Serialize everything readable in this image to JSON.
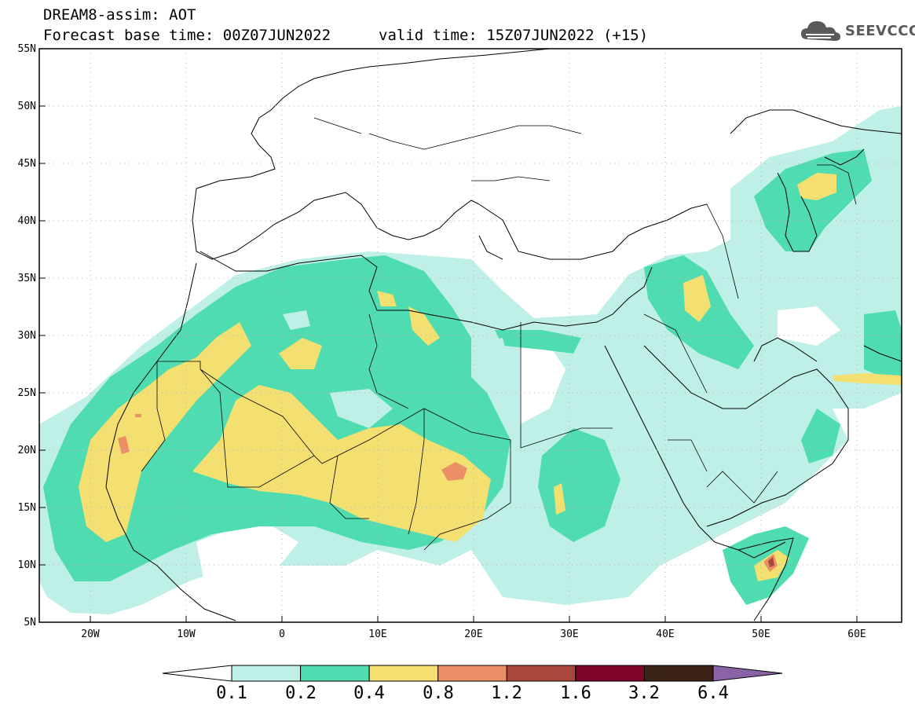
{
  "header": {
    "title_line1": "DREAM8-assim: AOT",
    "title_line2a": "Forecast base time: 00Z07JUN2022",
    "title_line2b": "valid time: 15Z07JUN2022 (+15)",
    "logo_text": "SEEVCCC"
  },
  "map": {
    "lat_labels": [
      "55N",
      "50N",
      "45N",
      "40N",
      "35N",
      "30N",
      "25N",
      "20N",
      "15N",
      "10N",
      "5N"
    ],
    "lon_labels": [
      "20W",
      "10W",
      "0",
      "10E",
      "20E",
      "30E",
      "40E",
      "50E",
      "60E"
    ],
    "lon_range": [
      -25,
      65
    ],
    "lat_range": [
      5,
      55
    ],
    "variable": "AOT"
  },
  "colorbar": {
    "labels": [
      "0.1",
      "0.2",
      "0.4",
      "0.8",
      "1.2",
      "1.6",
      "3.2",
      "6.4"
    ],
    "colors": [
      "#ffffff",
      "#bff0e8",
      "#4fdcb0",
      "#f3e070",
      "#ea8f66",
      "#a9483a",
      "#7d0528",
      "#3a2416",
      "#8a63a6"
    ]
  }
}
